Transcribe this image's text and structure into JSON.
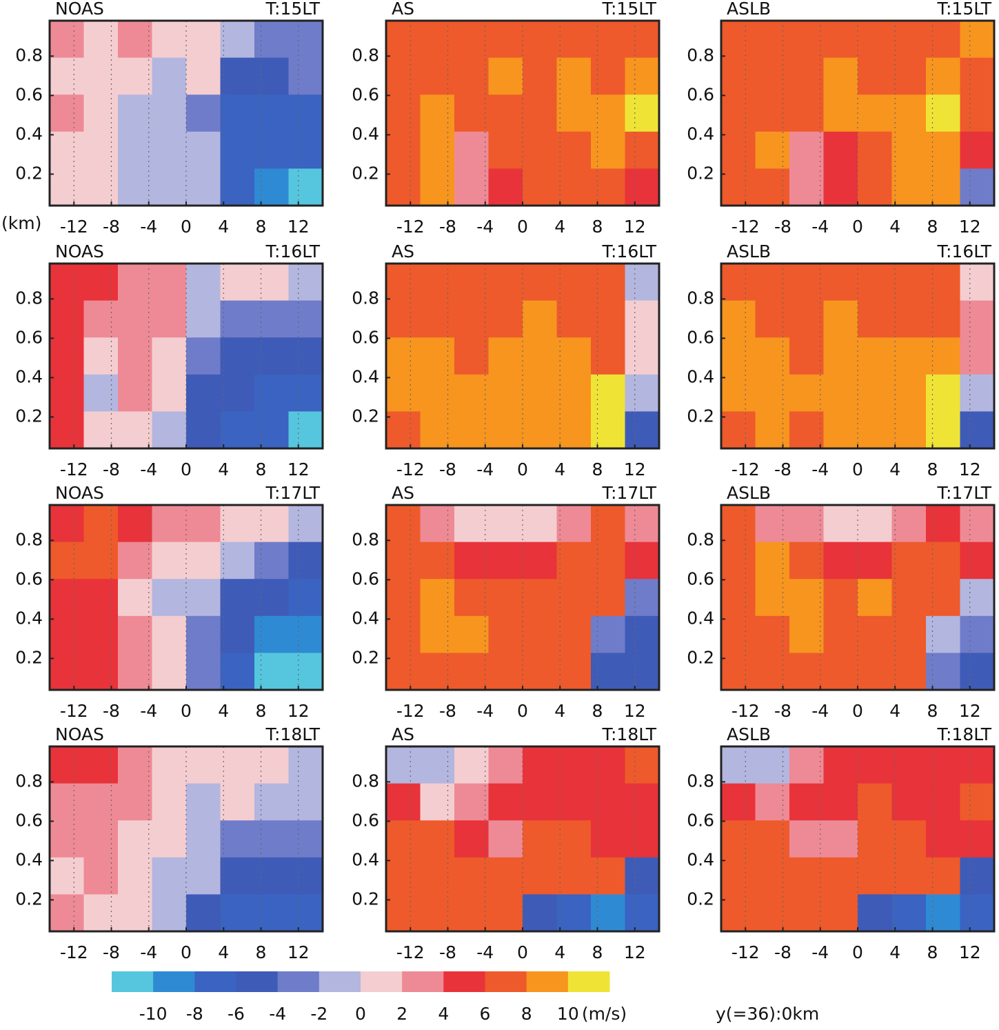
{
  "chart_data": [
    {
      "type": "heatmap",
      "title": "NOAS",
      "subtitle": "T:15LT",
      "xlim": [
        -14.6,
        14.6
      ],
      "ylim": [
        0.04,
        0.98
      ],
      "xticks": [
        -12,
        -8,
        -4,
        0,
        4,
        8,
        12
      ],
      "yticks": [
        0.2,
        0.4,
        0.6,
        0.8
      ],
      "grid": true,
      "z": [
        [
          3,
          1,
          3,
          1,
          1,
          -1,
          -3,
          -3
        ],
        [
          1,
          1,
          1,
          -1,
          1,
          -5,
          -5,
          -3
        ],
        [
          3,
          1,
          -1,
          -1,
          -3,
          -7,
          -7,
          -7
        ],
        [
          1,
          1,
          -1,
          -1,
          -1,
          -7,
          -7,
          -7
        ],
        [
          1,
          1,
          -1,
          -1,
          -1,
          -7,
          -9,
          -11
        ]
      ]
    },
    {
      "type": "heatmap",
      "title": "AS",
      "subtitle": "T:15LT",
      "xlim": [
        -14.6,
        14.6
      ],
      "ylim": [
        0.04,
        0.98
      ],
      "xticks": [
        -12,
        -8,
        -4,
        0,
        4,
        8,
        12
      ],
      "yticks": [
        0.2,
        0.4,
        0.6,
        0.8
      ],
      "grid": true,
      "z": [
        [
          7,
          7,
          7,
          7,
          7,
          7,
          7,
          7
        ],
        [
          7,
          7,
          7,
          9,
          7,
          9,
          7,
          9
        ],
        [
          7,
          9,
          7,
          7,
          7,
          9,
          9,
          11
        ],
        [
          7,
          9,
          3,
          7,
          7,
          7,
          9,
          7
        ],
        [
          7,
          9,
          3,
          5,
          7,
          7,
          7,
          5
        ]
      ]
    },
    {
      "type": "heatmap",
      "title": "ASLB",
      "subtitle": "T:15LT",
      "xlim": [
        -14.6,
        14.6
      ],
      "ylim": [
        0.04,
        0.98
      ],
      "xticks": [
        -12,
        -8,
        -4,
        0,
        4,
        8,
        12
      ],
      "yticks": [
        0.2,
        0.4,
        0.6,
        0.8
      ],
      "grid": true,
      "z": [
        [
          7,
          7,
          7,
          7,
          7,
          7,
          7,
          9
        ],
        [
          7,
          7,
          7,
          9,
          7,
          7,
          9,
          7
        ],
        [
          7,
          7,
          7,
          9,
          9,
          9,
          11,
          7
        ],
        [
          7,
          9,
          3,
          5,
          7,
          9,
          9,
          5
        ],
        [
          7,
          7,
          3,
          5,
          7,
          9,
          9,
          -3
        ]
      ]
    },
    {
      "type": "heatmap",
      "title": "NOAS",
      "subtitle": "T:16LT",
      "xlim": [
        -14.6,
        14.6
      ],
      "ylim": [
        0.04,
        0.98
      ],
      "xticks": [
        -12,
        -8,
        -4,
        0,
        4,
        8,
        12
      ],
      "yticks": [
        0.2,
        0.4,
        0.6,
        0.8
      ],
      "grid": true,
      "z": [
        [
          5,
          5,
          3,
          3,
          -1,
          1,
          1,
          -1
        ],
        [
          5,
          3,
          3,
          3,
          -1,
          -3,
          -3,
          -3
        ],
        [
          5,
          1,
          3,
          1,
          -3,
          -5,
          -5,
          -5
        ],
        [
          5,
          -1,
          3,
          1,
          -5,
          -5,
          -7,
          -7
        ],
        [
          5,
          1,
          1,
          -1,
          -5,
          -7,
          -7,
          -11
        ]
      ]
    },
    {
      "type": "heatmap",
      "title": "AS",
      "subtitle": "T:16LT",
      "xlim": [
        -14.6,
        14.6
      ],
      "ylim": [
        0.04,
        0.98
      ],
      "xticks": [
        -12,
        -8,
        -4,
        0,
        4,
        8,
        12
      ],
      "yticks": [
        0.2,
        0.4,
        0.6,
        0.8
      ],
      "grid": true,
      "z": [
        [
          7,
          7,
          7,
          7,
          7,
          7,
          7,
          -1
        ],
        [
          7,
          7,
          7,
          7,
          9,
          7,
          7,
          1
        ],
        [
          9,
          9,
          7,
          9,
          9,
          9,
          7,
          1
        ],
        [
          9,
          9,
          9,
          9,
          9,
          9,
          11,
          -1
        ],
        [
          7,
          9,
          9,
          9,
          9,
          9,
          11,
          -5
        ]
      ]
    },
    {
      "type": "heatmap",
      "title": "ASLB",
      "subtitle": "T:16LT",
      "xlim": [
        -14.6,
        14.6
      ],
      "ylim": [
        0.04,
        0.98
      ],
      "xticks": [
        -12,
        -8,
        -4,
        0,
        4,
        8,
        12
      ],
      "yticks": [
        0.2,
        0.4,
        0.6,
        0.8
      ],
      "grid": true,
      "z": [
        [
          7,
          7,
          7,
          7,
          7,
          7,
          7,
          1
        ],
        [
          9,
          7,
          7,
          9,
          7,
          7,
          7,
          3
        ],
        [
          9,
          9,
          7,
          9,
          9,
          9,
          9,
          3
        ],
        [
          9,
          9,
          9,
          9,
          9,
          9,
          11,
          -1
        ],
        [
          7,
          9,
          7,
          9,
          9,
          9,
          11,
          -5
        ]
      ]
    },
    {
      "type": "heatmap",
      "title": "NOAS",
      "subtitle": "T:17LT",
      "xlim": [
        -14.6,
        14.6
      ],
      "ylim": [
        0.04,
        0.98
      ],
      "xticks": [
        -12,
        -8,
        -4,
        0,
        4,
        8,
        12
      ],
      "yticks": [
        0.2,
        0.4,
        0.6,
        0.8
      ],
      "grid": true,
      "z": [
        [
          5,
          7,
          5,
          3,
          3,
          1,
          1,
          -1
        ],
        [
          7,
          7,
          3,
          1,
          1,
          -1,
          -3,
          -5
        ],
        [
          5,
          5,
          1,
          -1,
          -1,
          -5,
          -5,
          -7
        ],
        [
          5,
          5,
          3,
          1,
          -3,
          -5,
          -9,
          -9
        ],
        [
          5,
          5,
          3,
          1,
          -3,
          -7,
          -11,
          -11
        ]
      ]
    },
    {
      "type": "heatmap",
      "title": "AS",
      "subtitle": "T:17LT",
      "xlim": [
        -14.6,
        14.6
      ],
      "ylim": [
        0.04,
        0.98
      ],
      "xticks": [
        -12,
        -8,
        -4,
        0,
        4,
        8,
        12
      ],
      "yticks": [
        0.2,
        0.4,
        0.6,
        0.8
      ],
      "grid": true,
      "z": [
        [
          7,
          3,
          1,
          1,
          1,
          3,
          7,
          3
        ],
        [
          7,
          7,
          5,
          5,
          5,
          7,
          7,
          5
        ],
        [
          7,
          9,
          7,
          7,
          7,
          7,
          7,
          -3
        ],
        [
          7,
          9,
          9,
          7,
          7,
          7,
          -3,
          -5
        ],
        [
          7,
          7,
          7,
          7,
          7,
          7,
          -5,
          -5
        ]
      ]
    },
    {
      "type": "heatmap",
      "title": "ASLB",
      "subtitle": "T:17LT",
      "xlim": [
        -14.6,
        14.6
      ],
      "ylim": [
        0.04,
        0.98
      ],
      "xticks": [
        -12,
        -8,
        -4,
        0,
        4,
        8,
        12
      ],
      "yticks": [
        0.2,
        0.4,
        0.6,
        0.8
      ],
      "grid": true,
      "z": [
        [
          7,
          3,
          3,
          1,
          1,
          3,
          5,
          3
        ],
        [
          7,
          9,
          7,
          5,
          5,
          7,
          7,
          5
        ],
        [
          7,
          9,
          9,
          7,
          9,
          7,
          7,
          -1
        ],
        [
          7,
          7,
          9,
          7,
          7,
          7,
          -1,
          -3
        ],
        [
          7,
          7,
          7,
          7,
          7,
          7,
          -3,
          -5
        ]
      ]
    },
    {
      "type": "heatmap",
      "title": "NOAS",
      "subtitle": "T:18LT",
      "xlim": [
        -14.6,
        14.6
      ],
      "ylim": [
        0.04,
        0.98
      ],
      "xticks": [
        -12,
        -8,
        -4,
        0,
        4,
        8,
        12
      ],
      "yticks": [
        0.2,
        0.4,
        0.6,
        0.8
      ],
      "grid": true,
      "z": [
        [
          5,
          5,
          3,
          1,
          1,
          1,
          1,
          -1
        ],
        [
          3,
          3,
          3,
          1,
          -1,
          1,
          -1,
          -1
        ],
        [
          3,
          3,
          1,
          1,
          -1,
          -3,
          -3,
          -3
        ],
        [
          1,
          3,
          1,
          -1,
          -1,
          -5,
          -5,
          -5
        ],
        [
          3,
          1,
          1,
          -1,
          -5,
          -7,
          -7,
          -7
        ]
      ]
    },
    {
      "type": "heatmap",
      "title": "AS",
      "subtitle": "T:18LT",
      "xlim": [
        -14.6,
        14.6
      ],
      "ylim": [
        0.04,
        0.98
      ],
      "xticks": [
        -12,
        -8,
        -4,
        0,
        4,
        8,
        12
      ],
      "yticks": [
        0.2,
        0.4,
        0.6,
        0.8
      ],
      "grid": true,
      "z": [
        [
          -1,
          -1,
          1,
          3,
          5,
          5,
          5,
          7
        ],
        [
          5,
          1,
          3,
          5,
          5,
          5,
          5,
          5
        ],
        [
          7,
          7,
          5,
          3,
          7,
          7,
          5,
          5
        ],
        [
          7,
          7,
          7,
          7,
          7,
          7,
          7,
          -5
        ],
        [
          7,
          7,
          7,
          7,
          -5,
          -7,
          -9,
          -7
        ]
      ]
    },
    {
      "type": "heatmap",
      "title": "ASLB",
      "subtitle": "T:18LT",
      "xlim": [
        -14.6,
        14.6
      ],
      "ylim": [
        0.04,
        0.98
      ],
      "xticks": [
        -12,
        -8,
        -4,
        0,
        4,
        8,
        12
      ],
      "yticks": [
        0.2,
        0.4,
        0.6,
        0.8
      ],
      "grid": true,
      "z": [
        [
          -1,
          -1,
          3,
          5,
          5,
          5,
          5,
          5
        ],
        [
          5,
          3,
          5,
          5,
          7,
          5,
          5,
          7
        ],
        [
          7,
          7,
          3,
          3,
          7,
          7,
          5,
          5
        ],
        [
          7,
          7,
          7,
          7,
          7,
          7,
          7,
          -5
        ],
        [
          7,
          7,
          7,
          7,
          -5,
          -7,
          -9,
          -7
        ]
      ]
    }
  ],
  "y_unit": "(km)",
  "colorbar": {
    "ticks": [
      -10,
      -8,
      -6,
      -4,
      -2,
      0,
      2,
      4,
      6,
      8,
      10
    ],
    "unit": "(m/s)",
    "colors": [
      "#55c6de",
      "#2f8ad4",
      "#3a63c2",
      "#3f5bb8",
      "#6f7cc9",
      "#b3b6df",
      "#f4cdd0",
      "#ee8a95",
      "#e8333a",
      "#ee5a2b",
      "#f7951f",
      "#efe436"
    ]
  },
  "note": "y(=36):0km"
}
